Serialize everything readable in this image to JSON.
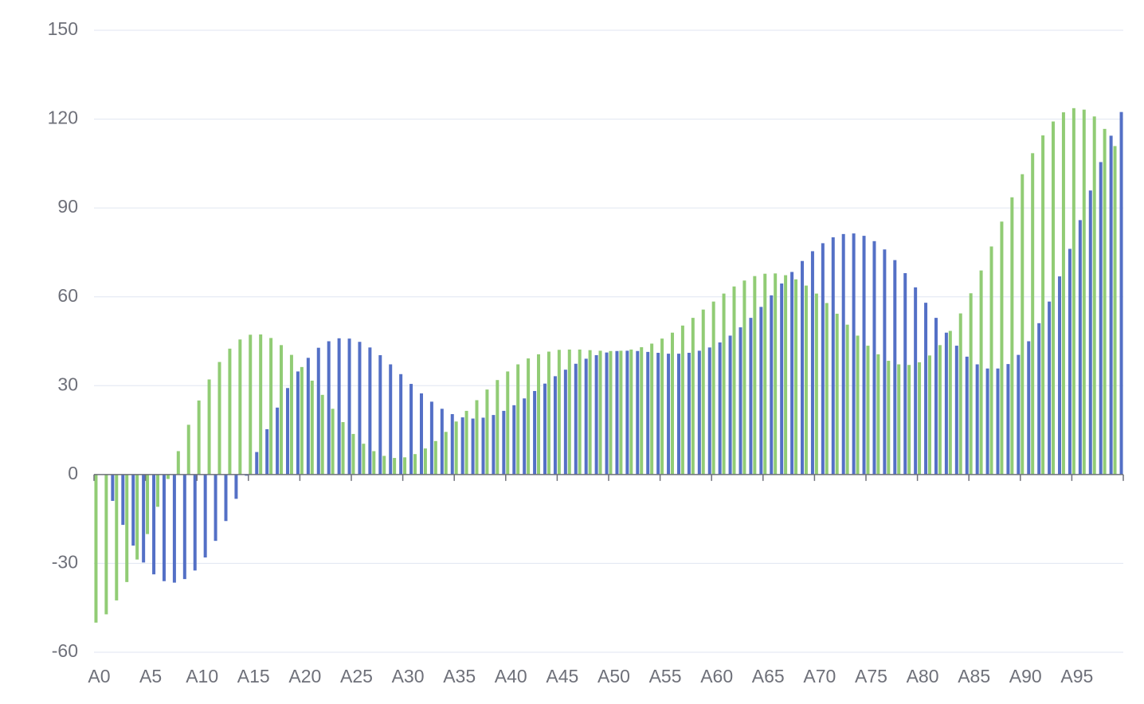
{
  "chart_data": {
    "type": "bar",
    "categories": [
      "A0",
      null,
      null,
      null,
      null,
      "A5",
      null,
      null,
      null,
      null,
      "A10",
      null,
      null,
      null,
      null,
      "A15",
      null,
      null,
      null,
      null,
      "A20",
      null,
      null,
      null,
      null,
      "A25",
      null,
      null,
      null,
      null,
      "A30",
      null,
      null,
      null,
      null,
      "A35",
      null,
      null,
      null,
      null,
      "A40",
      null,
      null,
      null,
      null,
      "A45",
      null,
      null,
      null,
      null,
      "A50",
      null,
      null,
      null,
      null,
      "A55",
      null,
      null,
      null,
      null,
      "A60",
      null,
      null,
      null,
      null,
      "A65",
      null,
      null,
      null,
      null,
      "A70",
      null,
      null,
      null,
      null,
      "A75",
      null,
      null,
      null,
      null,
      "A80",
      null,
      null,
      null,
      null,
      "A85",
      null,
      null,
      null,
      null,
      "A90",
      null,
      null,
      null,
      null,
      "A95",
      null,
      null,
      null,
      null
    ],
    "series": [
      {
        "color": "#91cc75",
        "values": [
          -50,
          -47.2,
          -42.5,
          -36.3,
          -28.7,
          -20.1,
          -10.9,
          -1.5,
          7.9,
          16.8,
          25,
          32.1,
          38,
          42.5,
          45.6,
          47.2,
          47.3,
          46.1,
          43.7,
          40.4,
          36.3,
          31.7,
          26.9,
          22.2,
          17.7,
          13.7,
          10.4,
          7.9,
          6.3,
          5.6,
          5.8,
          6.9,
          8.8,
          11.3,
          14.4,
          17.9,
          21.5,
          25.1,
          28.7,
          31.9,
          34.8,
          37.2,
          39.2,
          40.6,
          41.5,
          42.1,
          42.2,
          42.2,
          42,
          41.8,
          41.7,
          41.8,
          42.2,
          43,
          44.2,
          45.9,
          47.9,
          50.3,
          52.9,
          55.7,
          58.4,
          61.1,
          63.5,
          65.5,
          67,
          67.8,
          67.9,
          67.3,
          65.9,
          63.8,
          61.1,
          57.9,
          54.3,
          50.6,
          46.9,
          43.5,
          40.6,
          38.4,
          37.2,
          37,
          37.9,
          40.2,
          43.7,
          48.5,
          54.4,
          61.2,
          68.9,
          77,
          85.4,
          93.6,
          101.4,
          108.5,
          114.5,
          119.2,
          122.3,
          123.7,
          123.2,
          120.9,
          116.7,
          110.9
        ]
      },
      {
        "color": "#5470c6",
        "values": [
          0,
          -8.9,
          -17,
          -24,
          -29.7,
          -33.7,
          -36,
          -36.5,
          -35.3,
          -32.4,
          -28,
          -22.4,
          -15.7,
          -8.2,
          -0.4,
          7.6,
          15.3,
          22.6,
          29.2,
          34.8,
          39.4,
          42.8,
          45,
          46,
          45.9,
          44.8,
          42.9,
          40.3,
          37.2,
          33.9,
          30.6,
          27.4,
          24.6,
          22.2,
          20.4,
          19.3,
          18.9,
          19.2,
          20.1,
          21.5,
          23.4,
          25.7,
          28.2,
          30.7,
          33.2,
          35.4,
          37.4,
          39.1,
          40.3,
          41.2,
          41.7,
          41.8,
          41.7,
          41.4,
          41.1,
          40.8,
          40.8,
          41.1,
          41.8,
          42.9,
          44.6,
          46.9,
          49.7,
          52.9,
          56.6,
          60.5,
          64.5,
          68.4,
          72.1,
          75.4,
          78.1,
          80.1,
          81.2,
          81.4,
          80.6,
          78.8,
          76,
          72.4,
          68,
          63.2,
          58,
          52.9,
          47.9,
          43.5,
          39.8,
          37.2,
          35.8,
          35.8,
          37.3,
          40.4,
          45,
          51.1,
          58.4,
          66.9,
          76.2,
          85.9,
          95.9,
          105.5,
          114.4,
          122.4
        ]
      }
    ],
    "ylim": [
      -60,
      150
    ],
    "yticks": [
      -60,
      -30,
      0,
      30,
      60,
      90,
      120,
      150
    ],
    "grid": true
  }
}
